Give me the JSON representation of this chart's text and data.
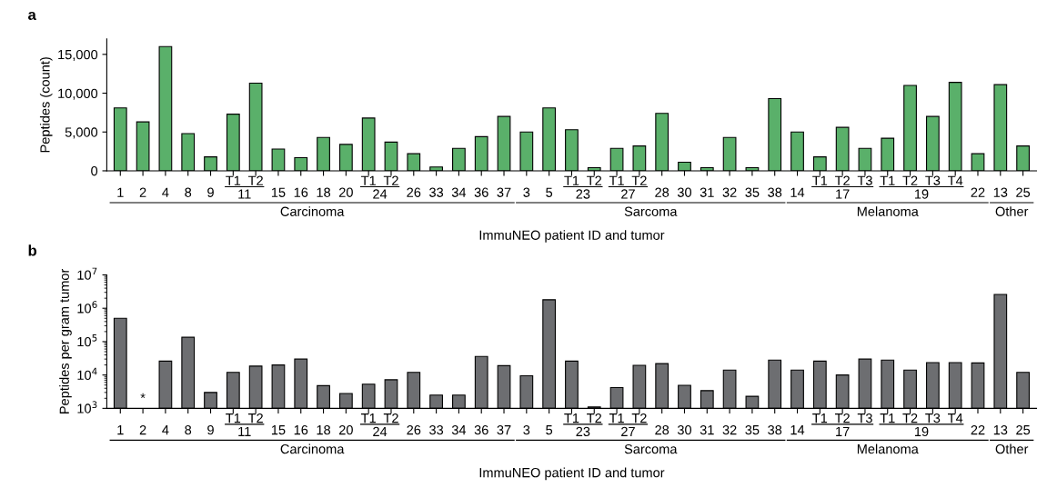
{
  "chart_data": [
    {
      "type": "bar",
      "title": "a",
      "ylabel": "Peptides (count)",
      "xlabel": "ImmuNEO patient ID and tumor",
      "categories": [
        "1",
        "2",
        "4",
        "8",
        "9",
        "T1",
        "T2",
        "15",
        "16",
        "18",
        "20",
        "T1",
        "T2",
        "26",
        "33",
        "34",
        "36",
        "37",
        "3",
        "5",
        "T1",
        "T2",
        "T1",
        "T2",
        "28",
        "30",
        "31",
        "32",
        "35",
        "38",
        "14",
        "T1",
        "T2",
        "T3",
        "T1",
        "T2",
        "T3",
        "T4",
        "22",
        "13",
        "25"
      ],
      "series": [
        {
          "color": "#5ab06a",
          "values": [
            8100,
            6300,
            16000,
            4800,
            1800,
            7300,
            11300,
            2800,
            1700,
            4300,
            3400,
            6800,
            3700,
            2200,
            500,
            2900,
            4400,
            7000,
            5000,
            8100,
            5300,
            400,
            2900,
            3200,
            7400,
            1100,
            400,
            4300,
            400,
            9300,
            5000,
            1800,
            5600,
            2900,
            4200,
            11000,
            7000,
            11400,
            2200,
            11100,
            3200
          ]
        }
      ],
      "ylim": [
        0,
        17000
      ],
      "yticks": [
        0,
        {
          "value": 5000,
          "label": "5,000"
        },
        {
          "value": 10000,
          "label": "10,000"
        },
        {
          "value": 15000,
          "label": "15,000"
        }
      ],
      "annotations": [
        "11",
        "24",
        "23",
        "27",
        "17",
        "19",
        "Carcinoma",
        "Sarcoma",
        "Melanoma",
        "Other"
      ]
    },
    {
      "type": "bar",
      "title": "b",
      "ylabel": "Peptides per gram tumor",
      "xlabel": "ImmuNEO patient ID and tumor",
      "categories": [
        "1",
        "2",
        "4",
        "8",
        "9",
        "T1",
        "T2",
        "15",
        "16",
        "18",
        "20",
        "T1",
        "T2",
        "26",
        "33",
        "34",
        "36",
        "37",
        "3",
        "5",
        "T1",
        "T2",
        "T1",
        "T2",
        "28",
        "30",
        "31",
        "32",
        "35",
        "38",
        "14",
        "T1",
        "T2",
        "T3",
        "T1",
        "T2",
        "T3",
        "T4",
        "22",
        "13",
        "25"
      ],
      "series": [
        {
          "color": "#6d6e71",
          "values": [
            500000,
            null,
            26000,
            135000,
            3000,
            12000,
            18500,
            20000,
            30000,
            4800,
            2800,
            5300,
            7200,
            12000,
            2500,
            2500,
            36000,
            19000,
            9500,
            1800000,
            26000,
            1100,
            4200,
            19500,
            22000,
            4900,
            3400,
            14000,
            2300,
            28000,
            14000,
            26000,
            10000,
            30000,
            28000,
            14000,
            23500,
            23500,
            23000,
            2600000,
            12000
          ]
        }
      ],
      "log": true,
      "ylim": [
        1000,
        10000000
      ],
      "yticks": [
        {
          "value": 1000,
          "label": "10$^{3}$"
        },
        {
          "value": 10000,
          "label": "10$^{4}$"
        },
        {
          "value": 100000,
          "label": "10$^{5}$"
        },
        {
          "value": 1000000,
          "label": "10$^{6}$"
        },
        {
          "value": 10000000,
          "label": "10$^{7}$"
        }
      ],
      "annotations": [
        "11",
        "24",
        "23",
        "27",
        "17",
        "19",
        "Carcinoma",
        "Sarcoma",
        "Melanoma",
        "Other",
        "*"
      ]
    }
  ]
}
